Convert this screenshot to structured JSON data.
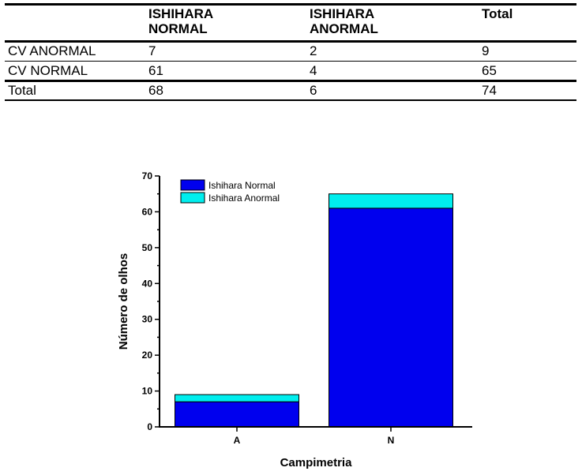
{
  "table": {
    "headers": [
      "",
      "ISHIHARA\nNORMAL",
      "ISHIHARA\nANORMAL",
      "Total"
    ],
    "rows": [
      [
        "CV ANORMAL",
        "7",
        "2",
        "9"
      ],
      [
        "CV NORMAL",
        "61",
        "4",
        "65"
      ],
      [
        "Total",
        "68",
        "6",
        "74"
      ]
    ]
  },
  "chart_data": {
    "type": "bar",
    "stacked": true,
    "categories": [
      "A",
      "N"
    ],
    "series": [
      {
        "name": "Ishihara Normal",
        "values": [
          7,
          61
        ],
        "color": "#0000ee"
      },
      {
        "name": "Ishihara Anormal",
        "values": [
          2,
          4
        ],
        "color": "#00eeee"
      }
    ],
    "xlabel": "Campimetria",
    "ylabel": "Número de olhos",
    "ylim": [
      0,
      70
    ],
    "yticks": [
      0,
      10,
      20,
      30,
      40,
      50,
      60,
      70
    ],
    "legend": "top-left",
    "grid": false
  }
}
